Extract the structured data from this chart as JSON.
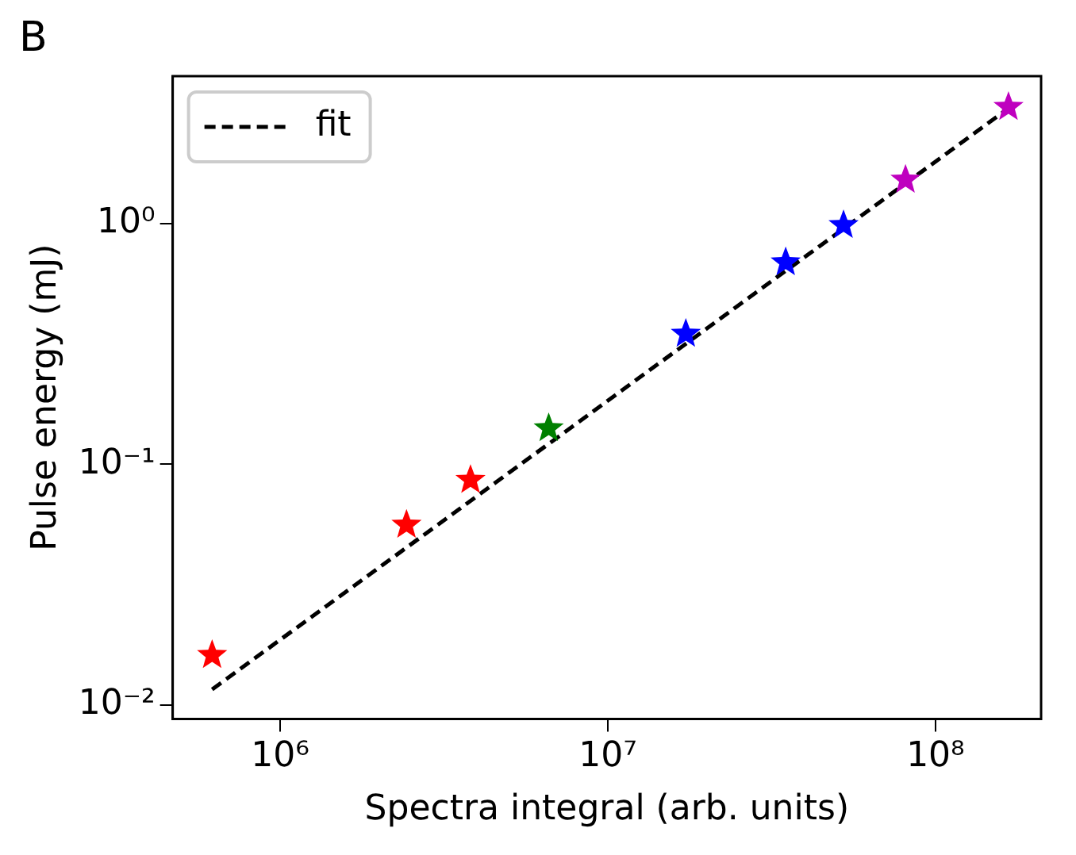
{
  "chart_data": {
    "type": "scatter",
    "xlabel": "Spectra integral (arb. units)",
    "ylabel": "Pulse energy (mJ)",
    "annotations": [
      "B"
    ],
    "log": "xy",
    "grid": false,
    "legend": "top left",
    "marker": "star",
    "xlim": [
      470000,
      210000000
    ],
    "ylim": [
      0.00875,
      4.1
    ],
    "xticks": [
      {
        "value": 1000000,
        "label": "10⁶"
      },
      {
        "value": 10000000,
        "label": "10⁷"
      },
      {
        "value": 100000000,
        "label": "10⁸"
      }
    ],
    "yticks": [
      {
        "value": 0.01,
        "label": "10⁻²"
      },
      {
        "value": 0.1,
        "label": "10⁻¹"
      },
      {
        "value": 1,
        "label": "10⁰"
      }
    ],
    "series": [
      {
        "type": "scatter",
        "x": [
          620000,
          2430000,
          3810000,
          6600000,
          17300000,
          34900000,
          52400000,
          81000000,
          167000000
        ],
        "values": [
          0.0161,
          0.056,
          0.086,
          0.141,
          0.348,
          0.69,
          0.985,
          1.52,
          3.05
        ],
        "colors": [
          "#ff0000",
          "#ff0000",
          "#ff0000",
          "#008000",
          "#0000ff",
          "#0000ff",
          "#0000ff",
          "#bf00bf",
          "#bf00bf"
        ]
      },
      {
        "type": "line",
        "name": "fit",
        "color": "#000000",
        "line_style": "dashed",
        "marker": "none",
        "x": [
          620000,
          164000000
        ],
        "values": [
          0.0116,
          2.96
        ]
      }
    ]
  }
}
